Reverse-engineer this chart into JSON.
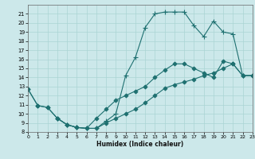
{
  "xlabel": "Humidex (Indice chaleur)",
  "background_color": "#cce8ea",
  "grid_color": "#aad4d4",
  "line_color": "#1e7070",
  "ylim": [
    8,
    22
  ],
  "xlim": [
    0,
    23
  ],
  "yticks": [
    8,
    9,
    10,
    11,
    12,
    13,
    14,
    15,
    16,
    17,
    18,
    19,
    20,
    21
  ],
  "xticks": [
    0,
    1,
    2,
    3,
    4,
    5,
    6,
    7,
    8,
    9,
    10,
    11,
    12,
    13,
    14,
    15,
    16,
    17,
    18,
    19,
    20,
    21,
    22,
    23
  ],
  "series": [
    {
      "x": [
        0,
        1,
        2,
        3,
        4,
        5,
        6,
        7,
        8,
        9,
        10,
        11,
        12,
        13,
        14,
        15,
        16,
        17,
        18,
        19,
        20,
        21,
        22,
        23
      ],
      "y": [
        12.7,
        10.9,
        10.7,
        9.5,
        8.8,
        8.5,
        8.4,
        8.4,
        9.0,
        9.5,
        10.0,
        10.5,
        11.2,
        12.0,
        12.8,
        13.2,
        13.5,
        13.8,
        14.2,
        14.5,
        15.0,
        15.5,
        14.2,
        14.2
      ],
      "marker": "D",
      "markersize": 2.5,
      "lw": 0.8
    },
    {
      "x": [
        3,
        4,
        5,
        6,
        7,
        8,
        9,
        10,
        11,
        12,
        13,
        14,
        15,
        16,
        17,
        18,
        19,
        20,
        21,
        22,
        23
      ],
      "y": [
        9.5,
        8.8,
        8.5,
        8.4,
        8.4,
        9.2,
        10.0,
        14.2,
        16.2,
        19.5,
        21.0,
        21.2,
        21.2,
        21.2,
        19.7,
        18.5,
        20.2,
        19.0,
        18.8,
        14.2,
        14.2
      ],
      "marker": "+",
      "markersize": 4.5,
      "lw": 0.8
    },
    {
      "x": [
        0,
        1,
        2,
        3,
        4,
        5,
        6,
        7,
        8,
        9,
        10,
        11,
        12,
        13,
        14,
        15,
        16,
        17,
        18,
        19,
        20,
        21,
        22,
        23
      ],
      "y": [
        12.7,
        10.9,
        10.7,
        9.5,
        8.8,
        8.5,
        8.4,
        9.5,
        10.5,
        11.5,
        12.0,
        12.5,
        13.0,
        14.0,
        14.8,
        15.5,
        15.5,
        15.0,
        14.5,
        14.0,
        15.8,
        15.5,
        14.2,
        14.2
      ],
      "marker": "D",
      "markersize": 2.5,
      "lw": 0.8
    }
  ]
}
